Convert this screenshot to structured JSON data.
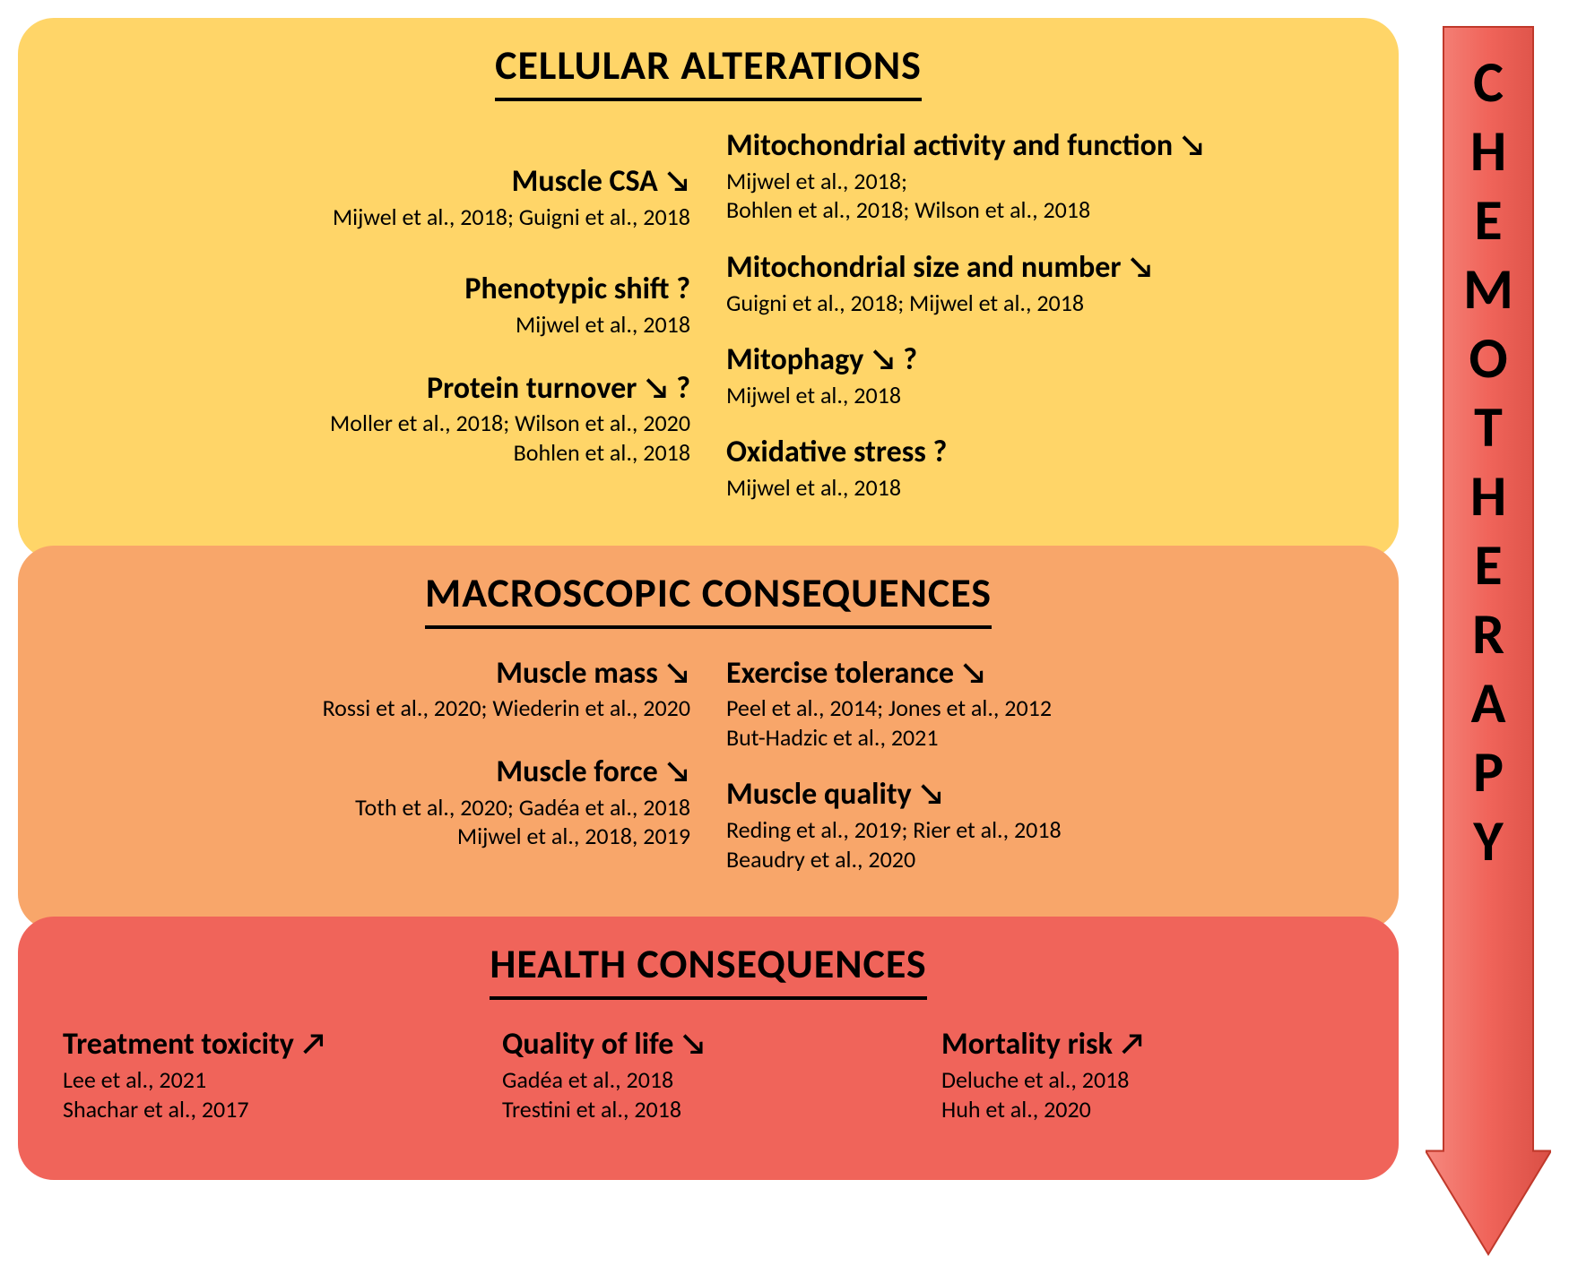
{
  "colors": {
    "panel1_bg": "#ffd568",
    "panel2_bg": "#f8a66a",
    "panel3_bg": "#f0645a",
    "arrow_fill": "#f0645a",
    "arrow_stroke": "#c0392b",
    "text": "#000000",
    "underline": "#000000"
  },
  "arrow_label_letters": [
    "C",
    "H",
    "E",
    "M",
    "O",
    "T",
    "H",
    "E",
    "R",
    "A",
    "P",
    "Y"
  ],
  "symbols": {
    "down": "↘",
    "up": "↗",
    "question": "?"
  },
  "panels": [
    {
      "title": "CELLULAR ALTERATIONS",
      "layout": "two-col",
      "left": [
        {
          "label": "Muscle CSA ↘",
          "refs": "Mijwel et al., 2018; Guigni et al., 2018"
        },
        {
          "label": "Phenotypic shift ?",
          "refs": "Mijwel et al., 2018"
        },
        {
          "label": "Protein turnover ↘ ?",
          "refs": "Moller et al., 2018; Wilson et al., 2020\nBohlen et al., 2018"
        }
      ],
      "right": [
        {
          "label": "Mitochondrial activity and function ↘",
          "refs": "Mijwel et al., 2018;\nBohlen et al., 2018; Wilson et al., 2018"
        },
        {
          "label": "Mitochondrial size and number ↘",
          "refs": "Guigni et al., 2018; Mijwel et al., 2018"
        },
        {
          "label": "Mitophagy ↘ ?",
          "refs": "Mijwel et al., 2018"
        },
        {
          "label": "Oxidative stress ?",
          "refs": "Mijwel et al., 2018"
        }
      ]
    },
    {
      "title": "MACROSCOPIC CONSEQUENCES",
      "layout": "two-col",
      "left": [
        {
          "label": "Muscle mass ↘",
          "refs": "Rossi et al., 2020; Wiederin et al., 2020"
        },
        {
          "label": "Muscle force ↘",
          "refs": "Toth et al., 2020; Gadéa et al., 2018\nMijwel et al., 2018, 2019"
        }
      ],
      "right": [
        {
          "label": "Exercise tolerance ↘",
          "refs": "Peel et al., 2014; Jones et al., 2012\nBut-Hadzic et al., 2021"
        },
        {
          "label": "Muscle quality ↘",
          "refs": "Reding et al., 2019; Rier et al., 2018\nBeaudry et al., 2020"
        }
      ]
    },
    {
      "title": "HEALTH CONSEQUENCES",
      "layout": "three-col",
      "items": [
        {
          "label": "Treatment toxicity ↗",
          "refs": "Lee et al., 2021\nShachar et al., 2017"
        },
        {
          "label": "Quality of life ↘",
          "refs": "Gadéa et al., 2018\nTrestini et al., 2018"
        },
        {
          "label": "Mortality risk ↗",
          "refs": "Deluche et al., 2018\nHuh et al., 2020"
        }
      ]
    }
  ]
}
